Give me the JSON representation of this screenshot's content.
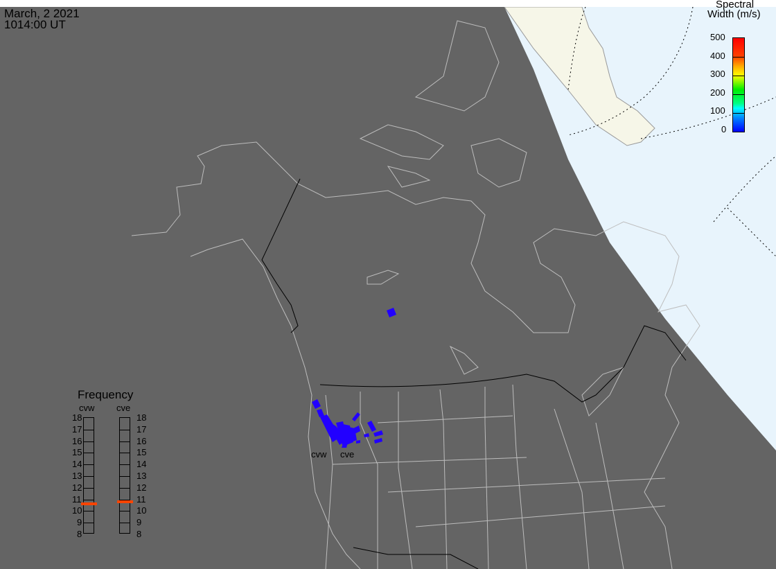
{
  "header": {
    "date": "March, 2 2021",
    "time": "1014:00 UT"
  },
  "colorbar": {
    "title_line1": "Spectral",
    "title_line2": "Width (m/s)",
    "ticks": [
      "500",
      "400",
      "300",
      "200",
      "100",
      "0"
    ],
    "colors": [
      "#ff0000",
      "#ff8800",
      "#ffff00",
      "#00ee00",
      "#00ffff",
      "#0000ff"
    ]
  },
  "frequency": {
    "title": "Frequency",
    "unit_range": [
      8,
      18
    ],
    "ticks": [
      "18",
      "17",
      "16",
      "15",
      "14",
      "13",
      "12",
      "11",
      "10",
      "9",
      "8"
    ],
    "radars": [
      {
        "name": "cvw",
        "value_mhz": 10.55
      },
      {
        "name": "cve",
        "value_mhz": 10.75
      }
    ],
    "marker_color": "#ff4400"
  },
  "map": {
    "night_color": "#646464",
    "day_ocean_color": "#e8f4fc",
    "day_land_color": "#f6f6e8",
    "scatter_color": "#2200ff",
    "radar_labels": [
      "cvw",
      "cve"
    ]
  }
}
